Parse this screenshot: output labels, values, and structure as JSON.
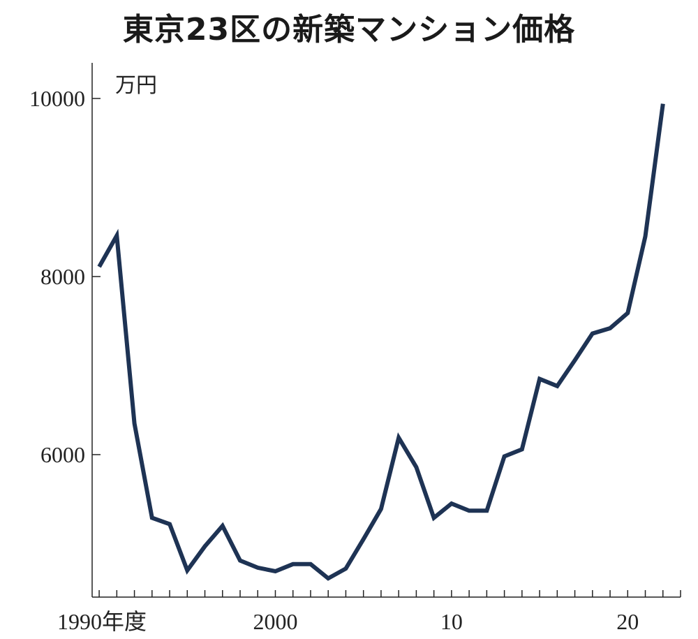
{
  "chart_data": {
    "type": "line",
    "title": "東京23区の新築マンション価格",
    "ylabel": "万円",
    "xlabel": "",
    "ylim": [
      4400,
      10400
    ],
    "xlim": [
      1989.6,
      2023.0
    ],
    "y_ticks": [
      6000,
      8000,
      10000
    ],
    "x_ticks": [
      {
        "value": 1990,
        "label": "1990年度"
      },
      {
        "value": 2000,
        "label": "2000"
      },
      {
        "value": 2010,
        "label": "10"
      },
      {
        "value": 2020,
        "label": "20"
      }
    ],
    "grid": false,
    "line_color": "#1e3354",
    "x": [
      1990,
      1991,
      1992,
      1993,
      1994,
      1995,
      1996,
      1997,
      1998,
      1999,
      2000,
      2001,
      2002,
      2003,
      2004,
      2005,
      2006,
      2007,
      2008,
      2009,
      2010,
      2011,
      2012,
      2013,
      2014,
      2015,
      2016,
      2017,
      2018,
      2019,
      2020,
      2021,
      2022
    ],
    "series": [
      {
        "values": [
          8110,
          8460,
          6350,
          5290,
          5220,
          4700,
          4970,
          5200,
          4810,
          4730,
          4690,
          4770,
          4770,
          4610,
          4720,
          5050,
          5390,
          6190,
          5860,
          5290,
          5450,
          5370,
          5370,
          5980,
          6060,
          6850,
          6770,
          7060,
          7360,
          7420,
          7590,
          8450,
          9940
        ]
      }
    ]
  }
}
